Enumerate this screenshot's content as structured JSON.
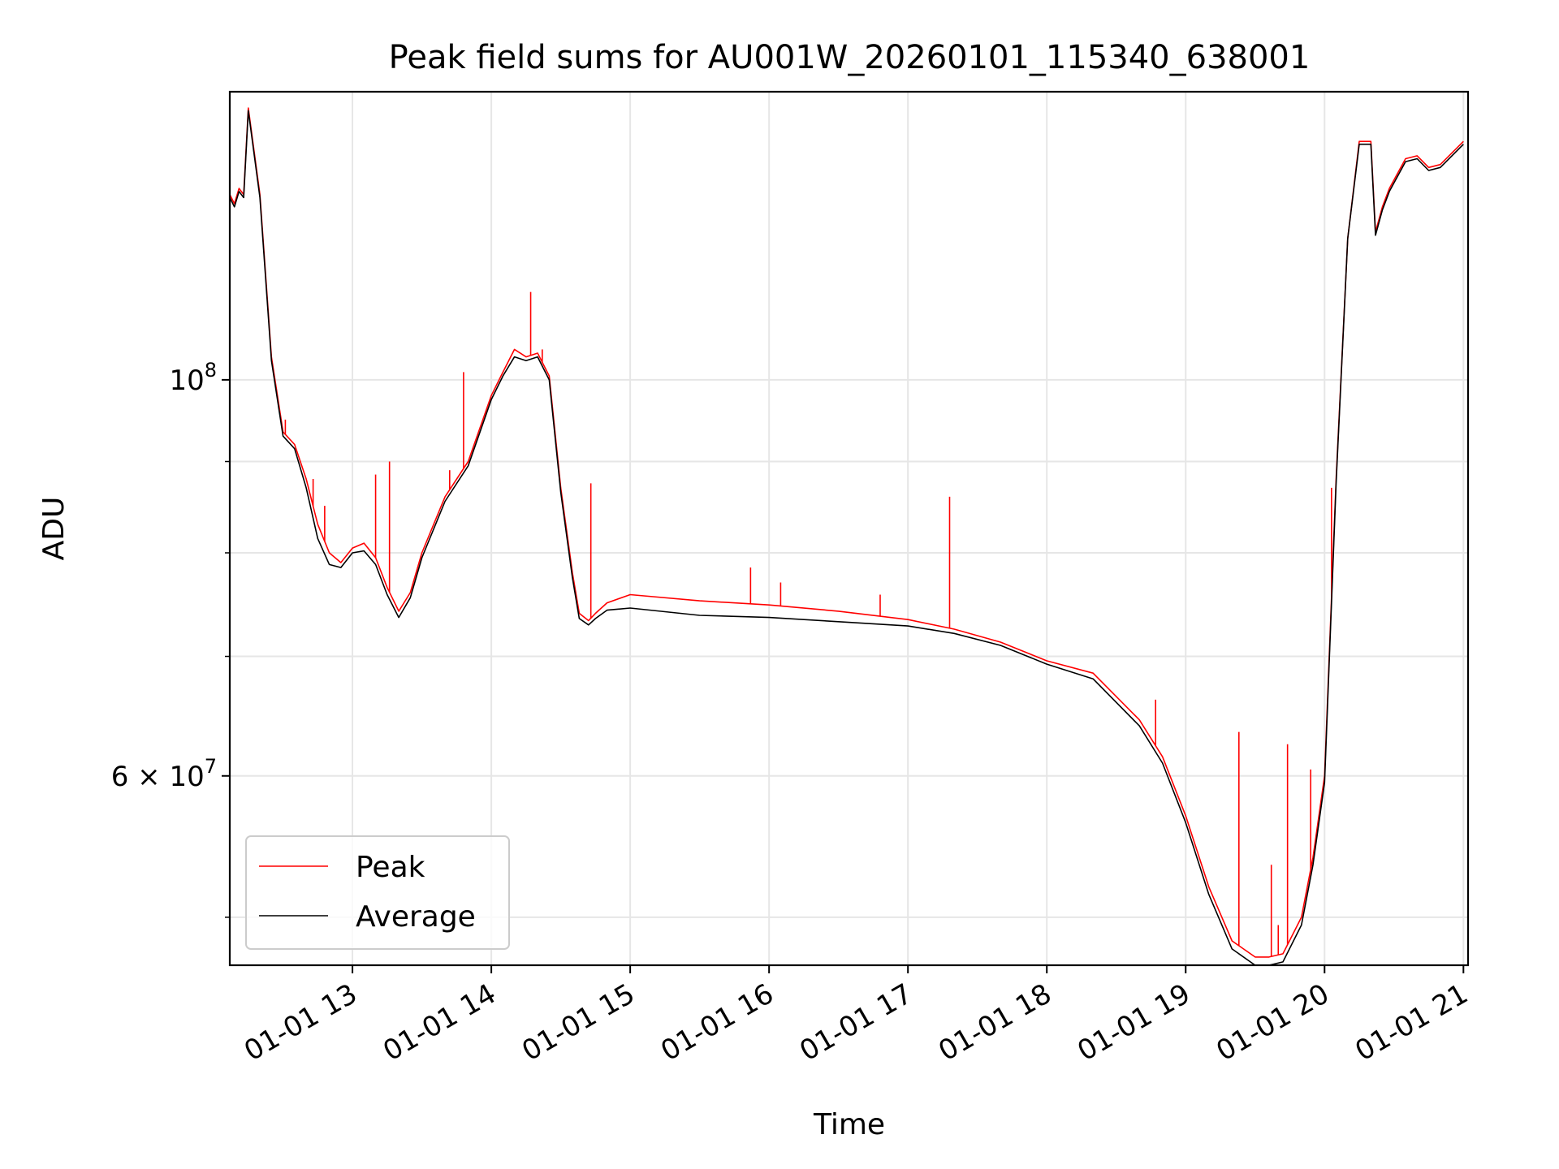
{
  "chart_data": {
    "type": "line",
    "title": "Peak field sums for AU001W_20260101_115340_638001",
    "xlabel": "Time",
    "ylabel": "ADU",
    "yscale": "log",
    "xlim": [
      "2026-01-01 12:07",
      "2026-01-01 21:02"
    ],
    "ylim": [
      47000000,
      145000000
    ],
    "x_ticks": [
      {
        "value": "2026-01-01 13:00",
        "label": "01-01 13"
      },
      {
        "value": "2026-01-01 14:00",
        "label": "01-01 14"
      },
      {
        "value": "2026-01-01 15:00",
        "label": "01-01 15"
      },
      {
        "value": "2026-01-01 16:00",
        "label": "01-01 16"
      },
      {
        "value": "2026-01-01 17:00",
        "label": "01-01 17"
      },
      {
        "value": "2026-01-01 18:00",
        "label": "01-01 18"
      },
      {
        "value": "2026-01-01 19:00",
        "label": "01-01 19"
      },
      {
        "value": "2026-01-01 20:00",
        "label": "01-01 20"
      },
      {
        "value": "2026-01-01 21:00",
        "label": "01-01 21"
      }
    ],
    "y_major_ticks": [
      {
        "value": 100000000,
        "label": "10",
        "exp": "8"
      },
      {
        "value": 60000000,
        "label": "6 × 10",
        "exp": "7"
      }
    ],
    "y_minor_ticks": [
      50000000,
      70000000,
      80000000,
      90000000
    ],
    "grid": true,
    "legend_position": "lower-left",
    "series": [
      {
        "name": "Peak",
        "color": "#ff0000",
        "x": [
          "2026-01-01 12:07",
          "2026-01-01 12:09",
          "2026-01-01 12:11",
          "2026-01-01 12:13",
          "2026-01-01 12:15",
          "2026-01-01 12:20",
          "2026-01-01 12:25",
          "2026-01-01 12:30",
          "2026-01-01 12:35",
          "2026-01-01 12:40",
          "2026-01-01 12:45",
          "2026-01-01 12:50",
          "2026-01-01 12:55",
          "2026-01-01 13:00",
          "2026-01-01 13:05",
          "2026-01-01 13:10",
          "2026-01-01 13:15",
          "2026-01-01 13:20",
          "2026-01-01 13:25",
          "2026-01-01 13:30",
          "2026-01-01 13:40",
          "2026-01-01 13:50",
          "2026-01-01 14:00",
          "2026-01-01 14:05",
          "2026-01-01 14:10",
          "2026-01-01 14:15",
          "2026-01-01 14:20",
          "2026-01-01 14:25",
          "2026-01-01 14:30",
          "2026-01-01 14:35",
          "2026-01-01 14:38",
          "2026-01-01 14:42",
          "2026-01-01 14:45",
          "2026-01-01 14:50",
          "2026-01-01 15:00",
          "2026-01-01 15:30",
          "2026-01-01 16:00",
          "2026-01-01 16:30",
          "2026-01-01 17:00",
          "2026-01-01 17:20",
          "2026-01-01 17:40",
          "2026-01-01 18:00",
          "2026-01-01 18:20",
          "2026-01-01 18:40",
          "2026-01-01 18:50",
          "2026-01-01 19:00",
          "2026-01-01 19:10",
          "2026-01-01 19:20",
          "2026-01-01 19:30",
          "2026-01-01 19:36",
          "2026-01-01 19:42",
          "2026-01-01 19:50",
          "2026-01-01 19:55",
          "2026-01-01 20:00",
          "2026-01-01 20:05",
          "2026-01-01 20:10",
          "2026-01-01 20:15",
          "2026-01-01 20:20",
          "2026-01-01 20:22",
          "2026-01-01 20:25",
          "2026-01-01 20:28",
          "2026-01-01 20:35",
          "2026-01-01 20:40",
          "2026-01-01 20:45",
          "2026-01-01 20:50",
          "2026-01-01 21:00"
        ],
        "y": [
          127000000,
          125500000,
          128000000,
          127000000,
          142000000,
          127000000,
          103000000,
          93500000,
          92000000,
          88000000,
          83000000,
          80000000,
          79000000,
          80500000,
          81000000,
          79500000,
          76500000,
          74200000,
          76000000,
          80000000,
          86000000,
          90000000,
          98000000,
          101000000,
          104000000,
          103000000,
          103500000,
          100500000,
          87000000,
          78000000,
          74000000,
          73300000,
          74000000,
          75000000,
          75800000,
          75200000,
          74800000,
          74200000,
          73400000,
          72500000,
          71300000,
          69600000,
          68500000,
          64500000,
          61500000,
          57000000,
          52000000,
          48500000,
          47500000,
          47500000,
          47700000,
          50000000,
          54000000,
          60000000,
          88000000,
          120000000,
          136000000,
          136000000,
          121000000,
          125000000,
          128000000,
          133000000,
          133500000,
          131500000,
          132000000,
          136000000
        ]
      },
      {
        "name": "Average",
        "color": "#000000",
        "x": [
          "2026-01-01 12:07",
          "2026-01-01 12:09",
          "2026-01-01 12:11",
          "2026-01-01 12:13",
          "2026-01-01 12:15",
          "2026-01-01 12:20",
          "2026-01-01 12:25",
          "2026-01-01 12:30",
          "2026-01-01 12:35",
          "2026-01-01 12:40",
          "2026-01-01 12:45",
          "2026-01-01 12:50",
          "2026-01-01 12:55",
          "2026-01-01 13:00",
          "2026-01-01 13:05",
          "2026-01-01 13:10",
          "2026-01-01 13:15",
          "2026-01-01 13:20",
          "2026-01-01 13:25",
          "2026-01-01 13:30",
          "2026-01-01 13:40",
          "2026-01-01 13:50",
          "2026-01-01 14:00",
          "2026-01-01 14:05",
          "2026-01-01 14:10",
          "2026-01-01 14:15",
          "2026-01-01 14:20",
          "2026-01-01 14:25",
          "2026-01-01 14:30",
          "2026-01-01 14:35",
          "2026-01-01 14:38",
          "2026-01-01 14:42",
          "2026-01-01 14:45",
          "2026-01-01 14:50",
          "2026-01-01 15:00",
          "2026-01-01 15:30",
          "2026-01-01 16:00",
          "2026-01-01 16:30",
          "2026-01-01 17:00",
          "2026-01-01 17:20",
          "2026-01-01 17:40",
          "2026-01-01 18:00",
          "2026-01-01 18:20",
          "2026-01-01 18:40",
          "2026-01-01 18:50",
          "2026-01-01 19:00",
          "2026-01-01 19:10",
          "2026-01-01 19:20",
          "2026-01-01 19:30",
          "2026-01-01 19:36",
          "2026-01-01 19:42",
          "2026-01-01 19:50",
          "2026-01-01 19:55",
          "2026-01-01 20:00",
          "2026-01-01 20:05",
          "2026-01-01 20:10",
          "2026-01-01 20:15",
          "2026-01-01 20:20",
          "2026-01-01 20:22",
          "2026-01-01 20:25",
          "2026-01-01 20:28",
          "2026-01-01 20:35",
          "2026-01-01 20:40",
          "2026-01-01 20:45",
          "2026-01-01 20:50",
          "2026-01-01 21:00"
        ],
        "y": [
          126500000,
          125000000,
          127500000,
          126500000,
          141500000,
          126500000,
          102500000,
          93000000,
          91500000,
          87000000,
          81500000,
          78800000,
          78500000,
          80000000,
          80200000,
          78800000,
          75800000,
          73600000,
          75500000,
          79500000,
          85500000,
          89500000,
          97500000,
          100500000,
          103000000,
          102500000,
          103000000,
          100000000,
          86500000,
          77500000,
          73500000,
          72900000,
          73500000,
          74300000,
          74500000,
          73800000,
          73600000,
          73200000,
          72800000,
          72100000,
          71000000,
          69300000,
          68000000,
          64000000,
          61000000,
          56500000,
          51500000,
          48000000,
          47000000,
          47000000,
          47200000,
          49500000,
          53500000,
          59500000,
          87500000,
          120000000,
          135500000,
          135500000,
          120500000,
          124500000,
          127500000,
          132500000,
          133000000,
          131000000,
          131500000,
          135500000
        ]
      }
    ],
    "spikes": [
      {
        "series": "Peak",
        "x": "2026-01-01 12:31",
        "y": 95000000
      },
      {
        "series": "Peak",
        "x": "2026-01-01 12:43",
        "y": 88000000
      },
      {
        "series": "Peak",
        "x": "2026-01-01 12:48",
        "y": 85000000
      },
      {
        "series": "Peak",
        "x": "2026-01-01 13:10",
        "y": 88500000
      },
      {
        "series": "Peak",
        "x": "2026-01-01 13:16",
        "y": 90000000
      },
      {
        "series": "Peak",
        "x": "2026-01-01 13:42",
        "y": 89000000
      },
      {
        "series": "Peak",
        "x": "2026-01-01 13:48",
        "y": 101000000
      },
      {
        "series": "Peak",
        "x": "2026-01-01 14:17",
        "y": 112000000
      },
      {
        "series": "Peak",
        "x": "2026-01-01 14:22",
        "y": 104000000
      },
      {
        "series": "Peak",
        "x": "2026-01-01 14:43",
        "y": 87500000
      },
      {
        "series": "Peak",
        "x": "2026-01-01 15:52",
        "y": 78500000
      },
      {
        "series": "Peak",
        "x": "2026-01-01 16:05",
        "y": 77000000
      },
      {
        "series": "Peak",
        "x": "2026-01-01 16:48",
        "y": 75800000
      },
      {
        "series": "Peak",
        "x": "2026-01-01 17:18",
        "y": 86000000
      },
      {
        "series": "Peak",
        "x": "2026-01-01 18:47",
        "y": 66200000
      },
      {
        "series": "Peak",
        "x": "2026-01-01 19:23",
        "y": 63500000
      },
      {
        "series": "Peak",
        "x": "2026-01-01 19:37",
        "y": 53500000
      },
      {
        "series": "Peak",
        "x": "2026-01-01 19:40",
        "y": 49500000
      },
      {
        "series": "Peak",
        "x": "2026-01-01 19:44",
        "y": 62500000
      },
      {
        "series": "Peak",
        "x": "2026-01-01 19:54",
        "y": 60500000
      },
      {
        "series": "Peak",
        "x": "2026-01-01 20:03",
        "y": 87000000
      }
    ]
  }
}
